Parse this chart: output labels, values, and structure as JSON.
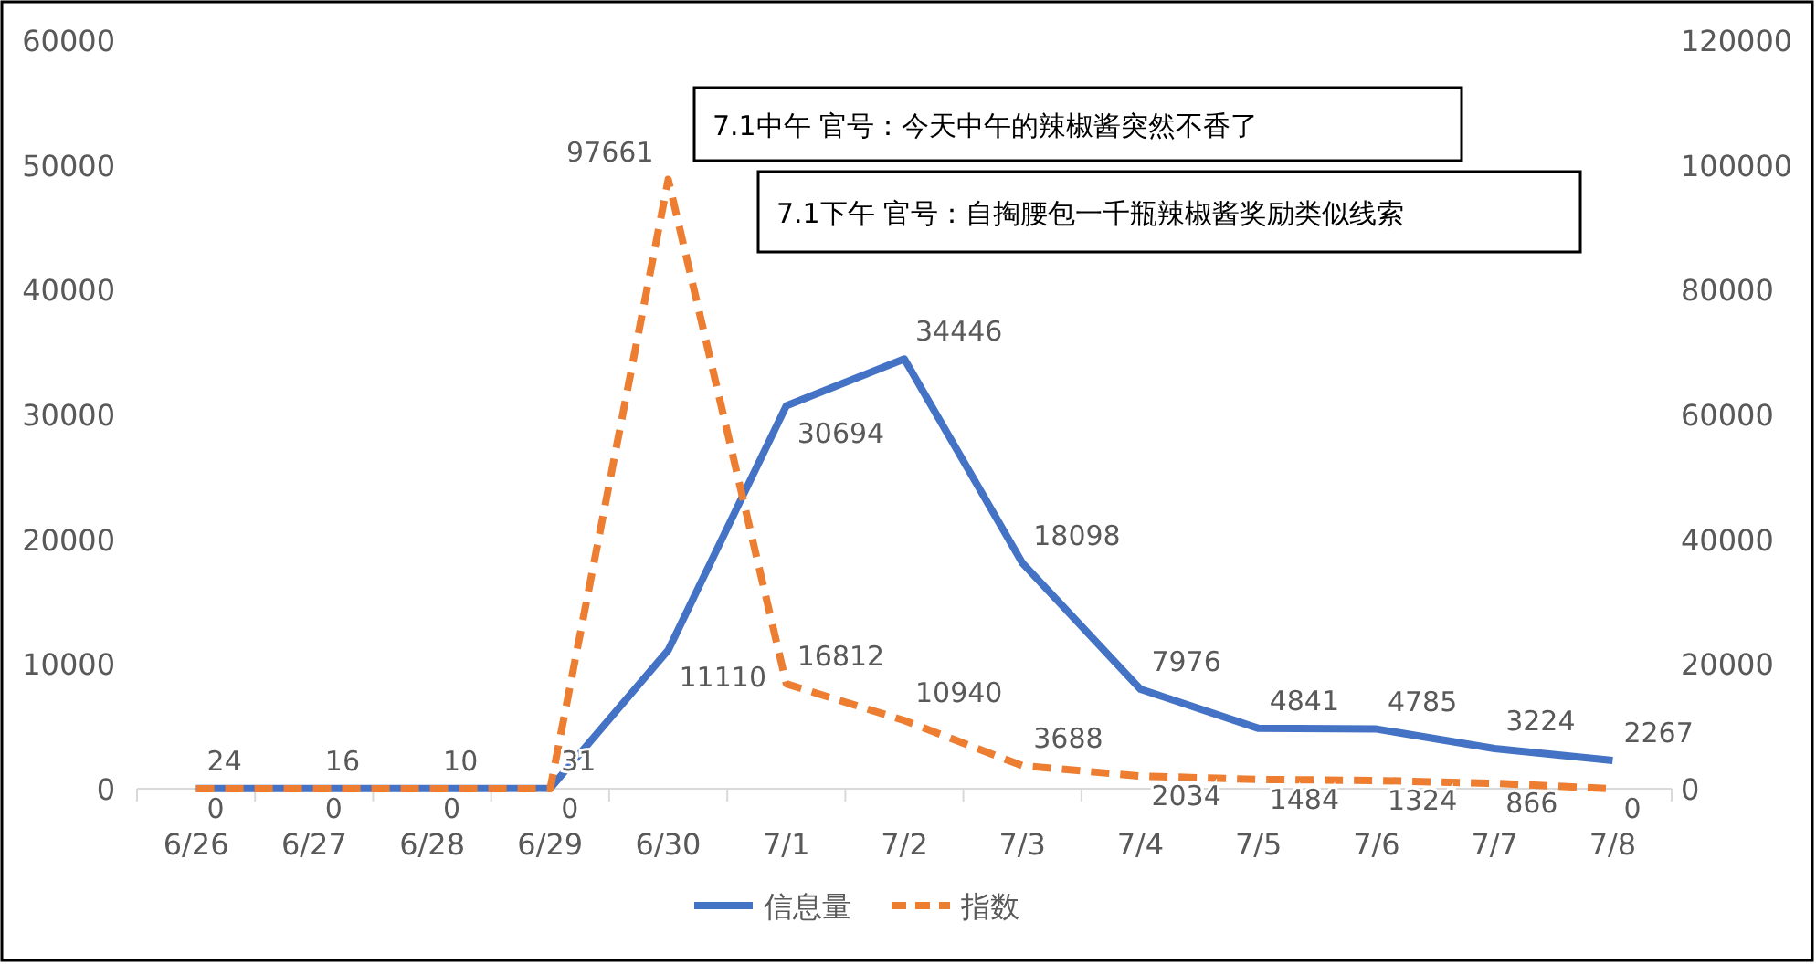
{
  "chart_data": {
    "type": "line",
    "categories": [
      "6/26",
      "6/27",
      "6/28",
      "6/29",
      "6/30",
      "7/1",
      "7/2",
      "7/3",
      "7/4",
      "7/5",
      "7/6",
      "7/7",
      "7/8"
    ],
    "series": [
      {
        "name": "信息量",
        "color": "#4472c4",
        "line_style": "solid",
        "values": [
          24,
          16,
          10,
          31,
          11110,
          30694,
          34446,
          18098,
          7976,
          4841,
          4785,
          3224,
          2267
        ]
      },
      {
        "name": "指数",
        "color": "#ed7d31",
        "line_style": "dashed",
        "axis": "y2",
        "values": [
          0,
          0,
          0,
          0,
          97661,
          16812,
          10940,
          3688,
          2034,
          1484,
          1324,
          866,
          0
        ]
      }
    ],
    "ylim": [
      0,
      60000
    ],
    "yticks": [
      0,
      10000,
      20000,
      30000,
      40000,
      50000,
      60000
    ],
    "y2lim": [
      0,
      120000
    ],
    "y2ticks": [
      0,
      20000,
      40000,
      60000,
      80000,
      100000,
      120000
    ],
    "data_labels": true,
    "legend": "bottom",
    "annotations": [
      "7.1中午 官号：今天中午的辣椒酱突然不香了",
      "7.1下午 官号：自掏腰包一千瓶辣椒酱奖励类似线索"
    ]
  }
}
